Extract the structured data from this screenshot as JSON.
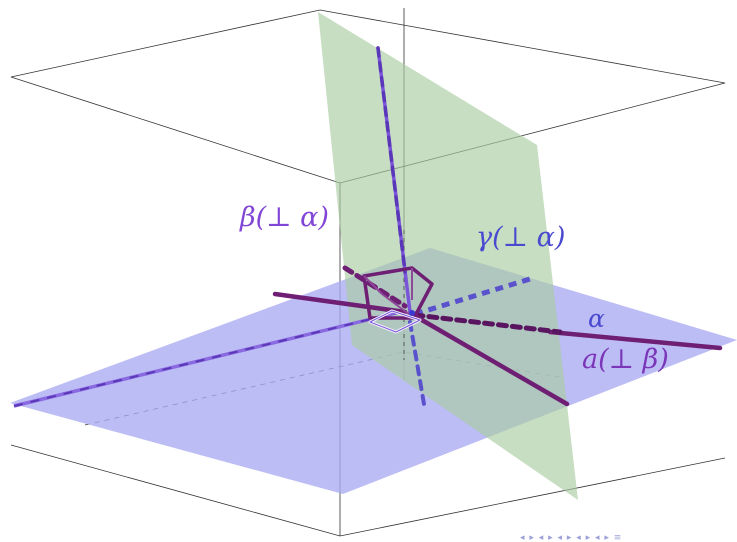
{
  "figure": {
    "labels": {
      "beta": "β(⊥ α)",
      "gamma": "γ(⊥ α)",
      "alpha": "α",
      "a": "a(⊥ β)"
    },
    "nav": "◂ ▸ ◂ ▸ ◂ ▸ ◂ ▸ ◂ ▸ ≡"
  },
  "colors": {
    "plane_alpha": "#aaaaf2",
    "plane_beta": "#b8d4b2",
    "line_purple": "#7a55d9",
    "line_dark": "#6e1f73",
    "line_blue": "#5a52cc",
    "label_beta": "#8246d6",
    "label_gamma": "#4a4ad0",
    "label_a": "#7a35b8",
    "frame": "#333333"
  }
}
